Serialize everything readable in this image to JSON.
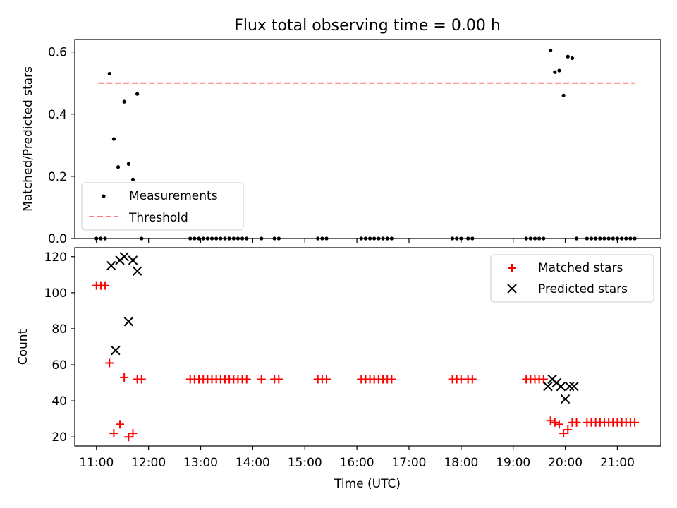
{
  "chart_data": [
    {
      "type": "scatter",
      "title": "Flux total observing time = 0.00 h",
      "xlabel": "",
      "ylabel": "Matched/Predicted stars",
      "xlim": [
        "10:35",
        "21:50"
      ],
      "ylim": [
        0,
        0.64
      ],
      "yticks": [
        0.0,
        0.2,
        0.4,
        0.6
      ],
      "ytick_labels": [
        "0.0",
        "0.2",
        "0.4",
        "0.6"
      ],
      "legend_position": "lower-left",
      "series": [
        {
          "name": "Measurements",
          "kind": "points",
          "color": "#000000",
          "points": [
            [
              "11:00",
              0
            ],
            [
              "11:05",
              0
            ],
            [
              "11:10",
              0
            ],
            [
              "11:15",
              0.53
            ],
            [
              "11:20",
              0.32
            ],
            [
              "11:25",
              0.23
            ],
            [
              "11:32",
              0.44
            ],
            [
              "11:37",
              0.24
            ],
            [
              "11:42",
              0.19
            ],
            [
              "11:47",
              0.465
            ],
            [
              "11:52",
              0
            ],
            [
              "12:48",
              0
            ],
            [
              "12:53",
              0
            ],
            [
              "12:58",
              0
            ],
            [
              "13:03",
              0
            ],
            [
              "13:08",
              0
            ],
            [
              "13:13",
              0
            ],
            [
              "13:18",
              0
            ],
            [
              "13:23",
              0
            ],
            [
              "13:28",
              0
            ],
            [
              "13:33",
              0
            ],
            [
              "13:38",
              0
            ],
            [
              "13:43",
              0
            ],
            [
              "13:48",
              0
            ],
            [
              "13:53",
              0
            ],
            [
              "14:10",
              0
            ],
            [
              "14:25",
              0
            ],
            [
              "14:30",
              0
            ],
            [
              "15:15",
              0
            ],
            [
              "15:20",
              0
            ],
            [
              "15:25",
              0
            ],
            [
              "16:05",
              0
            ],
            [
              "16:10",
              0
            ],
            [
              "16:15",
              0
            ],
            [
              "16:20",
              0
            ],
            [
              "16:25",
              0
            ],
            [
              "16:30",
              0
            ],
            [
              "16:35",
              0
            ],
            [
              "16:40",
              0
            ],
            [
              "17:50",
              0
            ],
            [
              "17:55",
              0
            ],
            [
              "18:00",
              0
            ],
            [
              "18:08",
              0
            ],
            [
              "18:13",
              0
            ],
            [
              "19:15",
              0
            ],
            [
              "19:20",
              0
            ],
            [
              "19:25",
              0
            ],
            [
              "19:30",
              0
            ],
            [
              "19:35",
              0
            ],
            [
              "19:43",
              0.605
            ],
            [
              "19:48",
              0.535
            ],
            [
              "19:53",
              0.54
            ],
            [
              "19:58",
              0.46
            ],
            [
              "20:03",
              0.585
            ],
            [
              "20:08",
              0.58
            ],
            [
              "20:13",
              0
            ],
            [
              "20:25",
              0
            ],
            [
              "20:30",
              0
            ],
            [
              "20:35",
              0
            ],
            [
              "20:40",
              0
            ],
            [
              "20:45",
              0
            ],
            [
              "20:50",
              0
            ],
            [
              "20:55",
              0
            ],
            [
              "21:00",
              0
            ],
            [
              "21:05",
              0
            ],
            [
              "21:10",
              0
            ],
            [
              "21:15",
              0
            ],
            [
              "21:20",
              0
            ]
          ]
        },
        {
          "name": "Threshold",
          "kind": "dashed-line",
          "color": "#ff7f7f",
          "points": [
            [
              "11:02",
              0.5
            ],
            [
              "21:20",
              0.5
            ]
          ]
        }
      ]
    },
    {
      "type": "scatter",
      "title": "",
      "xlabel": "Time (UTC)",
      "ylabel": "Count",
      "xlim": [
        "10:35",
        "21:50"
      ],
      "ylim": [
        15,
        125
      ],
      "xticks": [
        "11:00",
        "12:00",
        "13:00",
        "14:00",
        "15:00",
        "16:00",
        "17:00",
        "18:00",
        "19:00",
        "20:00",
        "21:00"
      ],
      "yticks": [
        20,
        40,
        60,
        80,
        100,
        120
      ],
      "ytick_labels": [
        "20",
        "40",
        "60",
        "80",
        "100",
        "120"
      ],
      "legend_position": "upper-right",
      "series": [
        {
          "name": "Matched stars",
          "kind": "plus",
          "color": "#ff0000",
          "points": [
            [
              "11:00",
              104
            ],
            [
              "11:05",
              104
            ],
            [
              "11:10",
              104
            ],
            [
              "11:15",
              61
            ],
            [
              "11:20",
              22
            ],
            [
              "11:27",
              27
            ],
            [
              "11:32",
              53
            ],
            [
              "11:37",
              20
            ],
            [
              "11:42",
              22
            ],
            [
              "11:47",
              52
            ],
            [
              "11:52",
              52
            ],
            [
              "12:48",
              52
            ],
            [
              "12:53",
              52
            ],
            [
              "12:58",
              52
            ],
            [
              "13:03",
              52
            ],
            [
              "13:08",
              52
            ],
            [
              "13:13",
              52
            ],
            [
              "13:18",
              52
            ],
            [
              "13:23",
              52
            ],
            [
              "13:28",
              52
            ],
            [
              "13:33",
              52
            ],
            [
              "13:38",
              52
            ],
            [
              "13:43",
              52
            ],
            [
              "13:48",
              52
            ],
            [
              "13:53",
              52
            ],
            [
              "14:10",
              52
            ],
            [
              "14:25",
              52
            ],
            [
              "14:30",
              52
            ],
            [
              "15:15",
              52
            ],
            [
              "15:20",
              52
            ],
            [
              "15:25",
              52
            ],
            [
              "16:05",
              52
            ],
            [
              "16:10",
              52
            ],
            [
              "16:15",
              52
            ],
            [
              "16:20",
              52
            ],
            [
              "16:25",
              52
            ],
            [
              "16:30",
              52
            ],
            [
              "16:35",
              52
            ],
            [
              "16:40",
              52
            ],
            [
              "17:50",
              52
            ],
            [
              "17:55",
              52
            ],
            [
              "18:00",
              52
            ],
            [
              "18:08",
              52
            ],
            [
              "18:13",
              52
            ],
            [
              "19:15",
              52
            ],
            [
              "19:20",
              52
            ],
            [
              "19:25",
              52
            ],
            [
              "19:30",
              52
            ],
            [
              "19:35",
              52
            ],
            [
              "19:43",
              29
            ],
            [
              "19:48",
              28
            ],
            [
              "19:53",
              27
            ],
            [
              "19:58",
              22
            ],
            [
              "20:03",
              24
            ],
            [
              "20:08",
              28
            ],
            [
              "20:13",
              28
            ],
            [
              "20:25",
              28
            ],
            [
              "20:30",
              28
            ],
            [
              "20:35",
              28
            ],
            [
              "20:40",
              28
            ],
            [
              "20:45",
              28
            ],
            [
              "20:50",
              28
            ],
            [
              "20:55",
              28
            ],
            [
              "21:00",
              28
            ],
            [
              "21:05",
              28
            ],
            [
              "21:10",
              28
            ],
            [
              "21:15",
              28
            ],
            [
              "21:20",
              28
            ]
          ]
        },
        {
          "name": "Predicted stars",
          "kind": "x",
          "color": "#000000",
          "points": [
            [
              "11:17",
              115
            ],
            [
              "11:22",
              68
            ],
            [
              "11:27",
              118
            ],
            [
              "11:32",
              120
            ],
            [
              "11:37",
              84
            ],
            [
              "11:42",
              118
            ],
            [
              "11:47",
              112
            ],
            [
              "19:40",
              48
            ],
            [
              "19:45",
              52
            ],
            [
              "19:50",
              50
            ],
            [
              "19:55",
              48
            ],
            [
              "20:00",
              41
            ],
            [
              "20:05",
              48
            ],
            [
              "20:10",
              48
            ]
          ]
        }
      ]
    }
  ]
}
